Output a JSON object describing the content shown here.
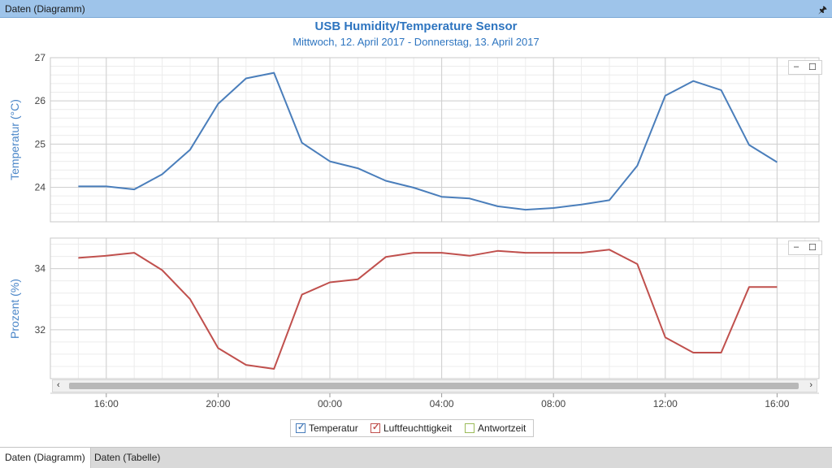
{
  "window": {
    "title": "Daten (Diagramm)"
  },
  "chart": {
    "title": "USB Humidity/Temperature Sensor",
    "subtitle": "Mittwoch, 12. April 2017 - Donnerstag, 13. April 2017"
  },
  "chart_data": [
    {
      "type": "line",
      "ylabel": "Temperatur (°C)",
      "ylim": [
        23.2,
        27
      ],
      "yticks": [
        24,
        25,
        26,
        27
      ],
      "x_tick_labels": [
        "16:00",
        "20:00",
        "00:00",
        "04:00",
        "08:00",
        "12:00",
        "16:00"
      ],
      "x_tick_hours": [
        16,
        20,
        24,
        28,
        32,
        36,
        40
      ],
      "xlim_hours": [
        14,
        41.5
      ],
      "grid": true,
      "series": [
        {
          "name": "Temperatur",
          "color": "#4a7ebb",
          "x_hours": [
            15,
            16,
            17,
            18,
            19,
            20,
            21,
            22,
            23,
            24,
            25,
            26,
            27,
            28,
            29,
            30,
            31,
            32,
            33,
            34,
            35,
            36,
            37,
            38,
            39,
            40
          ],
          "values": [
            24.02,
            24.02,
            23.95,
            24.3,
            24.87,
            25.93,
            26.52,
            26.65,
            25.03,
            24.6,
            24.44,
            24.15,
            23.99,
            23.78,
            23.74,
            23.56,
            23.48,
            23.52,
            23.6,
            23.7,
            24.5,
            26.12,
            26.46,
            26.25,
            24.98,
            24.58
          ]
        }
      ]
    },
    {
      "type": "line",
      "ylabel": "Prozent (%)",
      "ylim": [
        30.4,
        35
      ],
      "yticks": [
        32,
        34
      ],
      "x_tick_labels": [
        "16:00",
        "20:00",
        "00:00",
        "04:00",
        "08:00",
        "12:00",
        "16:00"
      ],
      "x_tick_hours": [
        16,
        20,
        24,
        28,
        32,
        36,
        40
      ],
      "xlim_hours": [
        14,
        41.5
      ],
      "grid": true,
      "series": [
        {
          "name": "Luftfeuchttigkeit",
          "color": "#c0504d",
          "x_hours": [
            15,
            16,
            17,
            18,
            19,
            20,
            21,
            22,
            23,
            24,
            25,
            26,
            27,
            28,
            29,
            30,
            31,
            32,
            33,
            34,
            35,
            36,
            37,
            38,
            39,
            40
          ],
          "values": [
            34.35,
            34.42,
            34.52,
            33.95,
            33.0,
            31.4,
            30.85,
            30.72,
            33.15,
            33.55,
            33.65,
            34.38,
            34.52,
            34.52,
            34.42,
            34.58,
            34.52,
            34.52,
            34.52,
            34.62,
            34.15,
            31.75,
            31.25,
            31.25,
            33.4,
            33.4
          ]
        }
      ]
    }
  ],
  "legend": [
    {
      "label": "Temperatur",
      "color": "#4a7ebb",
      "checked": true
    },
    {
      "label": "Luftfeuchttigkeit",
      "color": "#c0504d",
      "checked": true
    },
    {
      "label": "Antwortzeit",
      "color": "#9bbb59",
      "checked": false
    }
  ],
  "panel_controls": {
    "minimize": "–",
    "maximize": "☐"
  },
  "scrollbar": {
    "left_arrow": "‹",
    "right_arrow": "›"
  },
  "tabs": [
    {
      "label": "Daten (Diagramm)",
      "active": true
    },
    {
      "label": "Daten (Tabelle)",
      "active": false
    }
  ]
}
